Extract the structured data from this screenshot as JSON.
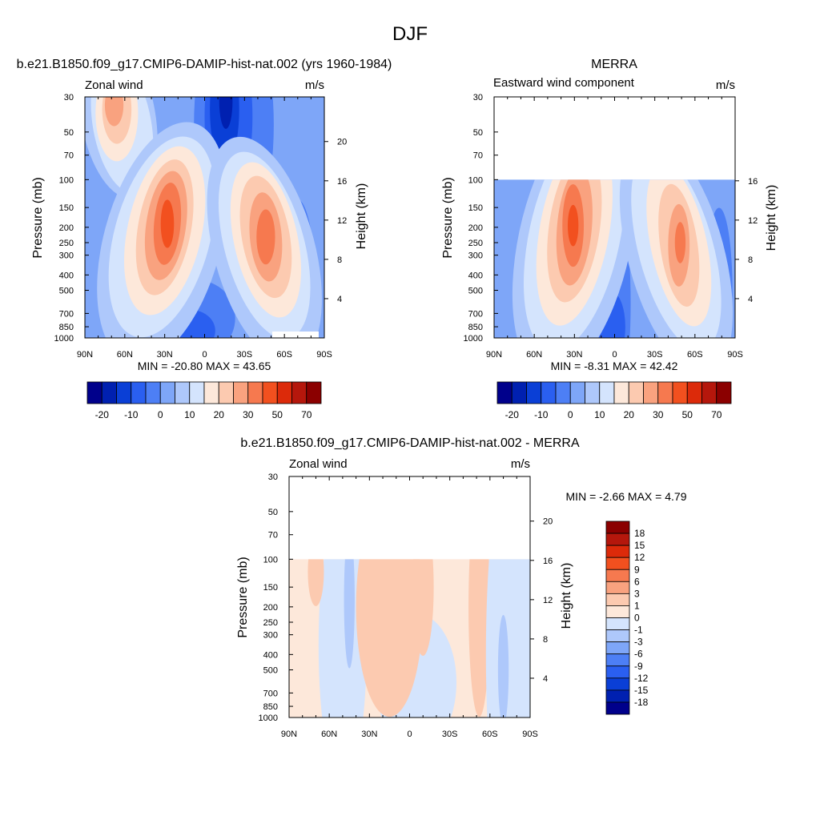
{
  "figure_title": "DJF",
  "palette_main": [
    "#00008b",
    "#0020b0",
    "#0a3fd6",
    "#2a5ff0",
    "#4d7ff5",
    "#7ea6f8",
    "#aec8fb",
    "#d4e4fd",
    "#fde8da",
    "#fccab0",
    "#f9a27f",
    "#f6794f",
    "#f2501f",
    "#dc2a0a",
    "#b5170c",
    "#8b0000"
  ],
  "palette_diff": [
    "#00008b",
    "#0020b0",
    "#0a3fd6",
    "#2a5ff0",
    "#4d7ff5",
    "#7ea6f8",
    "#aec8fb",
    "#d4e4fd",
    "#fde8da",
    "#fccab0",
    "#f9a27f",
    "#f6794f",
    "#f2501f",
    "#dc2a0a",
    "#b5170c",
    "#8b0000"
  ],
  "panels": [
    {
      "id": "model",
      "panel_title": "b.e21.B1850.f09_g17.CMIP6-DAMIP-hist-nat.002 (yrs 1960-1984)",
      "left_string": "Zonal wind",
      "right_string": "m/s",
      "ylabel": "Pressure (mb)",
      "y2label": "Height (km)",
      "min_max": "MIN = -20.80  MAX =  43.65",
      "xticks": [
        "90N",
        "60N",
        "30N",
        "0",
        "30S",
        "60S",
        "90S"
      ],
      "yticks": [
        "30",
        "50",
        "70",
        "100",
        "150",
        "200",
        "250",
        "300",
        "400",
        "500",
        "700",
        "850",
        "1000"
      ],
      "y2ticks": [
        "20",
        "16",
        "12",
        "8",
        "4"
      ],
      "colorbar_labels": [
        "-20",
        "-10",
        "0",
        "10",
        "20",
        "30",
        "50",
        "70"
      ]
    },
    {
      "id": "obs",
      "panel_title": "MERRA",
      "left_string": "Eastward wind component",
      "right_string": "m/s",
      "ylabel": "Pressure (mb)",
      "y2label": "Height (km)",
      "min_max": "MIN =  -8.31  MAX =  42.42",
      "xticks": [
        "90N",
        "60N",
        "30N",
        "0",
        "30S",
        "60S",
        "90S"
      ],
      "yticks": [
        "30",
        "50",
        "70",
        "100",
        "150",
        "200",
        "250",
        "300",
        "400",
        "500",
        "700",
        "850",
        "1000"
      ],
      "y2ticks": [
        "16",
        "12",
        "8",
        "4"
      ],
      "colorbar_labels": [
        "-20",
        "-10",
        "0",
        "10",
        "20",
        "30",
        "50",
        "70"
      ]
    },
    {
      "id": "diff",
      "panel_title": "b.e21.B1850.f09_g17.CMIP6-DAMIP-hist-nat.002 - MERRA",
      "left_string": "Zonal wind",
      "right_string": "m/s",
      "ylabel": "Pressure (mb)",
      "y2label": "Height (km)",
      "min_max": "MIN =  -2.66  MAX =   4.79",
      "xticks": [
        "90N",
        "60N",
        "30N",
        "0",
        "30S",
        "60S",
        "90S"
      ],
      "yticks": [
        "30",
        "50",
        "70",
        "100",
        "150",
        "200",
        "250",
        "300",
        "400",
        "500",
        "700",
        "850",
        "1000"
      ],
      "y2ticks": [
        "20",
        "16",
        "12",
        "8",
        "4"
      ],
      "colorbar_labels": [
        "18",
        "15",
        "12",
        "9",
        "6",
        "3",
        "1",
        "0",
        "-1",
        "-3",
        "-6",
        "-9",
        "-12",
        "-15",
        "-18"
      ]
    }
  ],
  "chart_data": [
    {
      "type": "heatmap",
      "title": "b.e21.B1850.f09_g17.CMIP6-DAMIP-hist-nat.002 (yrs 1960-1984)",
      "subtitle": "Zonal wind",
      "units": "m/s",
      "xlabel": "",
      "ylabel": "Pressure (mb)",
      "y2label": "Height (km)",
      "x_ticks": [
        "90N",
        "60N",
        "30N",
        "0",
        "30S",
        "60S",
        "90S"
      ],
      "y_ticks_mb": [
        30,
        50,
        70,
        100,
        150,
        200,
        250,
        300,
        400,
        500,
        700,
        850,
        1000
      ],
      "y2_ticks_km": [
        20,
        16,
        12,
        8,
        4
      ],
      "ylim_mb": [
        1000,
        30
      ],
      "y_scale": "log",
      "min": -20.8,
      "max": 43.65,
      "features": [
        {
          "name": "jet",
          "lat": 28,
          "p": 190,
          "value": 43
        },
        {
          "name": "jet",
          "lat": -45,
          "p": 230,
          "value": 38
        },
        {
          "name": "jet",
          "lat": 65,
          "p": 35,
          "value": 30
        },
        {
          "name": "minimum",
          "lat": -15,
          "p": 32,
          "value": -20
        }
      ]
    },
    {
      "type": "heatmap",
      "title": "MERRA",
      "subtitle": "Eastward wind component",
      "units": "m/s",
      "xlabel": "",
      "ylabel": "Pressure (mb)",
      "y2label": "Height (km)",
      "x_ticks": [
        "90N",
        "60N",
        "30N",
        "0",
        "30S",
        "60S",
        "90S"
      ],
      "y_ticks_mb": [
        30,
        50,
        70,
        100,
        150,
        200,
        250,
        300,
        400,
        500,
        700,
        850,
        1000
      ],
      "y2_ticks_km": [
        16,
        12,
        8,
        4
      ],
      "ylim_mb": [
        1000,
        30
      ],
      "data_top_mb": 100,
      "y_scale": "log",
      "min": -8.31,
      "max": 42.42,
      "features": [
        {
          "name": "jet",
          "lat": 30,
          "p": 200,
          "value": 42
        },
        {
          "name": "jet",
          "lat": -48,
          "p": 260,
          "value": 36
        },
        {
          "name": "easterly",
          "lat": 0,
          "p": 700,
          "value": -8
        }
      ]
    },
    {
      "type": "heatmap",
      "title": "b.e21.B1850.f09_g17.CMIP6-DAMIP-hist-nat.002 - MERRA",
      "subtitle": "Zonal wind",
      "units": "m/s",
      "xlabel": "",
      "ylabel": "Pressure (mb)",
      "y2label": "Height (km)",
      "x_ticks": [
        "90N",
        "60N",
        "30N",
        "0",
        "30S",
        "60S",
        "90S"
      ],
      "y_ticks_mb": [
        30,
        50,
        70,
        100,
        150,
        200,
        250,
        300,
        400,
        500,
        700,
        850,
        1000
      ],
      "y2_ticks_km": [
        20,
        16,
        12,
        8,
        4
      ],
      "ylim_mb": [
        1000,
        30
      ],
      "data_top_mb": 100,
      "y_scale": "log",
      "min": -2.66,
      "max": 4.79,
      "colorbar_levels": [
        -18,
        -15,
        -12,
        -9,
        -6,
        -3,
        -1,
        0,
        1,
        3,
        6,
        9,
        12,
        15,
        18
      ]
    }
  ]
}
